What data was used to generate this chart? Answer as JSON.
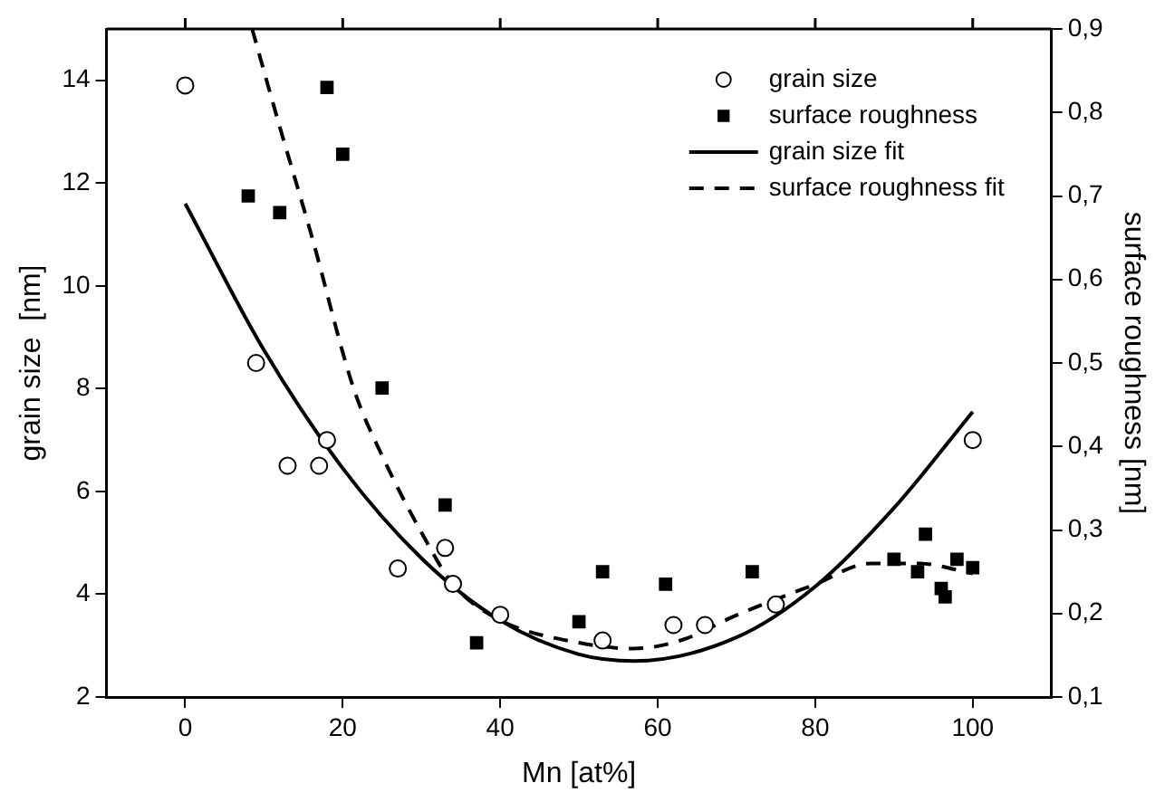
{
  "chart_data": {
    "type": "scatter",
    "xlabel": "Mn [at%]",
    "ylabel": "grain size  [nm]",
    "y2label": "surface roughness [nm]",
    "xlim": [
      -10,
      110
    ],
    "xticks": [
      0,
      20,
      40,
      60,
      80,
      100
    ],
    "ylim": [
      2,
      15
    ],
    "yticks": [
      2,
      4,
      6,
      8,
      10,
      12,
      14
    ],
    "y2lim": [
      0.1,
      0.9
    ],
    "y2ticks": [
      {
        "value": 0.1,
        "label": "0,1"
      },
      {
        "value": 0.2,
        "label": "0,2"
      },
      {
        "value": 0.3,
        "label": "0,3"
      },
      {
        "value": 0.4,
        "label": "0,4"
      },
      {
        "value": 0.5,
        "label": "0,5"
      },
      {
        "value": 0.6,
        "label": "0,6"
      },
      {
        "value": 0.7,
        "label": "0,7"
      },
      {
        "value": 0.8,
        "label": "0,8"
      },
      {
        "value": 0.9,
        "label": "0,9"
      }
    ],
    "grid": false,
    "legend": "top right",
    "series": [
      {
        "name": "grain size",
        "type": "scatter",
        "marker": "circle",
        "color": "#000000",
        "x": [
          0,
          9,
          13,
          17,
          18,
          27,
          33,
          34,
          40,
          53,
          62,
          66,
          75,
          100
        ],
        "values": [
          13.9,
          8.5,
          6.5,
          6.5,
          7.0,
          4.5,
          4.9,
          4.2,
          3.6,
          3.1,
          3.4,
          3.4,
          3.8,
          7.0
        ]
      },
      {
        "name": "surface roughness",
        "type": "scatter",
        "marker": "square",
        "color": "#000000",
        "axis": "y2",
        "x": [
          8,
          12,
          18,
          20,
          25,
          33,
          37,
          50,
          53,
          61,
          72,
          90,
          93,
          94,
          96,
          96.5,
          98,
          100
        ],
        "values": [
          0.7,
          0.68,
          0.83,
          0.75,
          0.47,
          0.33,
          0.165,
          0.19,
          0.25,
          0.235,
          0.25,
          0.265,
          0.25,
          0.295,
          0.23,
          0.22,
          0.265,
          0.255
        ]
      },
      {
        "name": "grain size fit",
        "type": "line",
        "line_style": "solid",
        "color": "#000000",
        "x": [
          0,
          10,
          20,
          30,
          40,
          50,
          57,
          70,
          80,
          90,
          100
        ],
        "values": [
          11.6,
          8.75,
          6.45,
          4.7,
          3.49,
          2.83,
          2.7,
          3.16,
          4.15,
          5.68,
          7.55
        ]
      },
      {
        "name": "surface roughness fit",
        "type": "line",
        "line_style": "dashed",
        "color": "#000000",
        "axis": "y2",
        "x": [
          8.5,
          12,
          16,
          21.4,
          25,
          30,
          34,
          40,
          50,
          57,
          63,
          70,
          80,
          87,
          93,
          100
        ],
        "values": [
          0.9,
          0.783,
          0.654,
          0.469,
          0.389,
          0.297,
          0.235,
          0.192,
          0.165,
          0.158,
          0.168,
          0.198,
          0.235,
          0.26,
          0.26,
          0.248
        ]
      }
    ]
  }
}
